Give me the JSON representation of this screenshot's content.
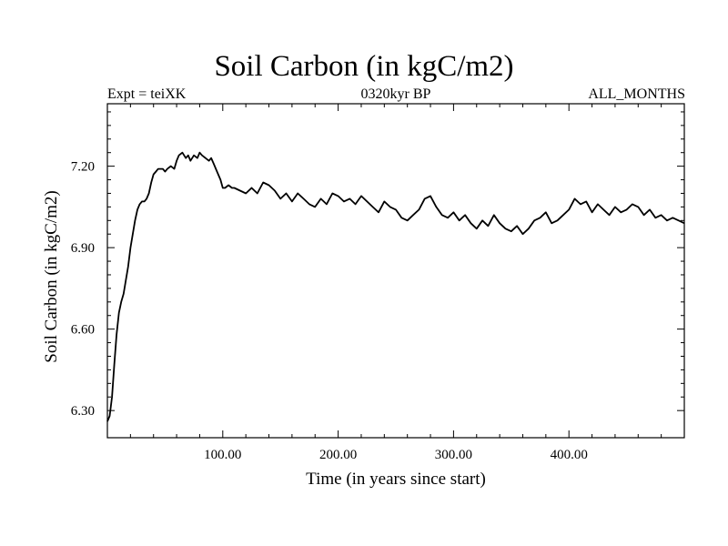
{
  "header": {
    "title": "Soil Carbon (in kgC/m2)",
    "subtitle_left": "Expt = teiXK",
    "subtitle_center": "0320kyr BP",
    "subtitle_right": "ALL_MONTHS"
  },
  "chart_data": {
    "type": "line",
    "title": "Soil Carbon (in kgC/m2)",
    "xlabel": "Time (in years since start)",
    "ylabel": "Soil Carbon (in kgC/m2)",
    "xlim": [
      0,
      500
    ],
    "ylim": [
      6.2,
      7.43
    ],
    "x_ticks": [
      100,
      200,
      300,
      400
    ],
    "x_tick_labels": [
      "100.00",
      "200.00",
      "300.00",
      "400.00"
    ],
    "y_ticks": [
      6.3,
      6.6,
      6.9,
      7.2
    ],
    "y_tick_labels": [
      "6.30",
      "6.60",
      "6.90",
      "7.20"
    ],
    "grid": false,
    "series": [
      {
        "color": "#000000",
        "x": [
          0,
          2,
          4,
          6,
          8,
          10,
          12,
          14,
          16,
          18,
          20,
          22,
          24,
          26,
          28,
          30,
          32,
          34,
          36,
          38,
          40,
          42,
          44,
          46,
          48,
          50,
          52,
          55,
          58,
          60,
          62,
          65,
          68,
          70,
          72,
          75,
          78,
          80,
          82,
          85,
          88,
          90,
          92,
          95,
          98,
          100,
          102,
          105,
          108,
          110,
          115,
          120,
          125,
          130,
          135,
          140,
          145,
          150,
          155,
          160,
          165,
          170,
          175,
          180,
          185,
          190,
          195,
          200,
          205,
          210,
          215,
          220,
          225,
          230,
          235,
          240,
          245,
          250,
          255,
          260,
          265,
          270,
          275,
          280,
          285,
          290,
          295,
          300,
          305,
          310,
          315,
          320,
          325,
          330,
          335,
          340,
          345,
          350,
          355,
          360,
          365,
          370,
          375,
          380,
          385,
          390,
          395,
          400,
          405,
          410,
          415,
          420,
          425,
          430,
          435,
          440,
          445,
          450,
          455,
          460,
          465,
          470,
          475,
          480,
          485,
          490,
          495,
          500
        ],
        "values": [
          6.26,
          6.28,
          6.35,
          6.47,
          6.58,
          6.66,
          6.7,
          6.73,
          6.78,
          6.83,
          6.9,
          6.95,
          7.0,
          7.04,
          7.06,
          7.07,
          7.07,
          7.08,
          7.1,
          7.14,
          7.17,
          7.18,
          7.19,
          7.19,
          7.19,
          7.18,
          7.19,
          7.2,
          7.19,
          7.22,
          7.24,
          7.25,
          7.23,
          7.24,
          7.22,
          7.24,
          7.23,
          7.25,
          7.24,
          7.23,
          7.22,
          7.23,
          7.21,
          7.18,
          7.15,
          7.12,
          7.12,
          7.13,
          7.12,
          7.12,
          7.11,
          7.1,
          7.12,
          7.1,
          7.14,
          7.13,
          7.11,
          7.08,
          7.1,
          7.07,
          7.1,
          7.08,
          7.06,
          7.05,
          7.08,
          7.06,
          7.1,
          7.09,
          7.07,
          7.08,
          7.06,
          7.09,
          7.07,
          7.05,
          7.03,
          7.07,
          7.05,
          7.04,
          7.01,
          7.0,
          7.02,
          7.04,
          7.08,
          7.09,
          7.05,
          7.02,
          7.01,
          7.03,
          7.0,
          7.02,
          6.99,
          6.97,
          7.0,
          6.98,
          7.02,
          6.99,
          6.97,
          6.96,
          6.98,
          6.95,
          6.97,
          7.0,
          7.01,
          7.03,
          6.99,
          7.0,
          7.02,
          7.04,
          7.08,
          7.06,
          7.07,
          7.03,
          7.06,
          7.04,
          7.02,
          7.05,
          7.03,
          7.04,
          7.06,
          7.05,
          7.02,
          7.04,
          7.01,
          7.02,
          7.0,
          7.01,
          7.0,
          6.99
        ]
      }
    ]
  }
}
